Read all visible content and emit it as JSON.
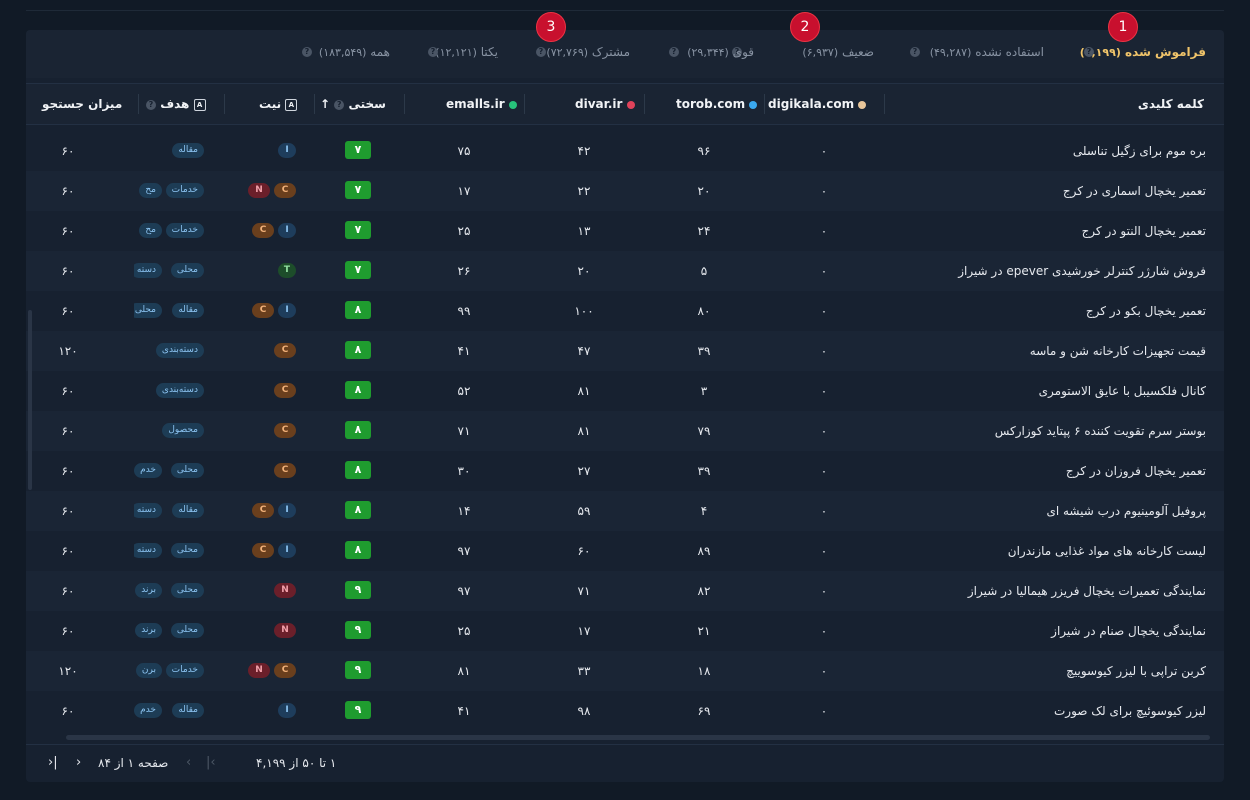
{
  "tabs": [
    {
      "label": "فراموش شده",
      "count": "(۴,۱۹۹)",
      "active": true
    },
    {
      "label": "استفاده نشده",
      "count": "(۴۹,۲۸۷)"
    },
    {
      "label": "ضعیف",
      "count": "(۶,۹۳۷)"
    },
    {
      "label": "قوی",
      "count": "(۲۹,۳۴۴)"
    },
    {
      "label": "مشترک",
      "count": "(۷۲,۷۶۹)"
    },
    {
      "label": "یکتا",
      "count": "(۱۲,۱۲۱)"
    },
    {
      "label": "همه",
      "count": "(۱۸۳,۵۴۹)"
    }
  ],
  "badges": [
    "1",
    "2",
    "3"
  ],
  "columns": {
    "keyword": "کلمه کلیدی",
    "digikala": "digikala.com",
    "torob": "torob.com",
    "divar": "divar.ir",
    "emalls": "emalls.ir",
    "difficulty": "سختی",
    "intent": "نیت",
    "goal": "هدف",
    "volume": "میزان جستجو"
  },
  "colors": {
    "digikala": "#e8c69a",
    "torob": "#3aa9f0",
    "divar": "#e0425a",
    "emalls": "#27c27b",
    "difficulty": "#1f9c2f",
    "active_tab": "#f0c46a"
  },
  "rows": [
    {
      "kw": "بره موم برای زگیل تناسلی",
      "dg": "۰",
      "tr": "۹۶",
      "dv": "۴۲",
      "em": "۷۵",
      "d": "۷",
      "intent": [
        "I"
      ],
      "goals": [
        "مقاله"
      ],
      "vol": "۶۰"
    },
    {
      "kw": "تعمیر یخچال اسماری در کرج",
      "dg": "۰",
      "tr": "۲۰",
      "dv": "۲۲",
      "em": "۱۷",
      "d": "۷",
      "intent": [
        "N",
        "C"
      ],
      "goals": [
        "خدمات",
        "مح"
      ],
      "vol": "۶۰"
    },
    {
      "kw": "تعمیر یخچال النتو در کرج",
      "dg": "۰",
      "tr": "۲۴",
      "dv": "۱۳",
      "em": "۲۵",
      "d": "۷",
      "intent": [
        "C",
        "I"
      ],
      "goals": [
        "خدمات",
        "مح"
      ],
      "vol": "۶۰"
    },
    {
      "kw": "فروش شارژر کنترلر خورشیدی epever در شیراز",
      "dg": "۰",
      "tr": "۵",
      "dv": "۲۰",
      "em": "۲۶",
      "d": "۷",
      "intent": [
        "T"
      ],
      "goals": [
        "محلی",
        "دسته"
      ],
      "vol": "۶۰"
    },
    {
      "kw": "تعمیر یخچال بکو در کرج",
      "dg": "۰",
      "tr": "۸۰",
      "dv": "۱۰۰",
      "em": "۹۹",
      "d": "۸",
      "intent": [
        "C",
        "I"
      ],
      "goals": [
        "مقاله",
        "محلی"
      ],
      "vol": "۶۰"
    },
    {
      "kw": "قیمت تجهیزات کارخانه شن و ماسه",
      "dg": "۰",
      "tr": "۳۹",
      "dv": "۴۷",
      "em": "۴۱",
      "d": "۸",
      "intent": [
        "C"
      ],
      "goals": [
        "دسته‌بندی"
      ],
      "vol": "۱۲۰"
    },
    {
      "kw": "کانال فلکسیبل با عایق الاستومری",
      "dg": "۰",
      "tr": "۳",
      "dv": "۸۱",
      "em": "۵۲",
      "d": "۸",
      "intent": [
        "C"
      ],
      "goals": [
        "دسته‌بندی"
      ],
      "vol": "۶۰"
    },
    {
      "kw": "بوستر سرم تقویت کننده ۶ پپتاید کوزارکس",
      "dg": "۰",
      "tr": "۷۹",
      "dv": "۸۱",
      "em": "۷۱",
      "d": "۸",
      "intent": [
        "C"
      ],
      "goals": [
        "محصول"
      ],
      "vol": "۶۰"
    },
    {
      "kw": "تعمیر یخچال فروزان در کرج",
      "dg": "۰",
      "tr": "۳۹",
      "dv": "۲۷",
      "em": "۳۰",
      "d": "۸",
      "intent": [
        "C"
      ],
      "goals": [
        "محلی",
        "خدم"
      ],
      "vol": "۶۰"
    },
    {
      "kw": "پروفیل آلومینیوم درب شیشه ای",
      "dg": "۰",
      "tr": "۴",
      "dv": "۵۹",
      "em": "۱۴",
      "d": "۸",
      "intent": [
        "C",
        "I"
      ],
      "goals": [
        "مقاله",
        "دسته"
      ],
      "vol": "۶۰"
    },
    {
      "kw": "لیست کارخانه های مواد غذایی مازندران",
      "dg": "۰",
      "tr": "۸۹",
      "dv": "۶۰",
      "em": "۹۷",
      "d": "۸",
      "intent": [
        "C",
        "I"
      ],
      "goals": [
        "محلی",
        "دسته"
      ],
      "vol": "۶۰"
    },
    {
      "kw": "نمایندگی تعمیرات یخچال فریزر هیمالیا در شیراز",
      "dg": "۰",
      "tr": "۸۲",
      "dv": "۷۱",
      "em": "۹۷",
      "d": "۹",
      "intent": [
        "N"
      ],
      "goals": [
        "محلی",
        "برند"
      ],
      "vol": "۶۰"
    },
    {
      "kw": "نمایندگی یخچال صنام در شیراز",
      "dg": "۰",
      "tr": "۲۱",
      "dv": "۱۷",
      "em": "۲۵",
      "d": "۹",
      "intent": [
        "N"
      ],
      "goals": [
        "محلی",
        "برند"
      ],
      "vol": "۶۰"
    },
    {
      "kw": "کربن تراپی با لیزر کیوسوییچ",
      "dg": "۰",
      "tr": "۱۸",
      "dv": "۳۳",
      "em": "۸۱",
      "d": "۹",
      "intent": [
        "N",
        "C"
      ],
      "goals": [
        "خدمات",
        "برن"
      ],
      "vol": "۱۲۰"
    },
    {
      "kw": "لیزر کیوسوئیچ برای لک صورت",
      "dg": "۰",
      "tr": "۶۹",
      "dv": "۹۸",
      "em": "۴۱",
      "d": "۹",
      "intent": [
        "I"
      ],
      "goals": [
        "مقاله",
        "خدم"
      ],
      "vol": "۶۰"
    }
  ],
  "footer": {
    "range": "۱ تا ۵۰ از ۴,۱۹۹",
    "page": "صفحه ۱ از ۸۴"
  }
}
